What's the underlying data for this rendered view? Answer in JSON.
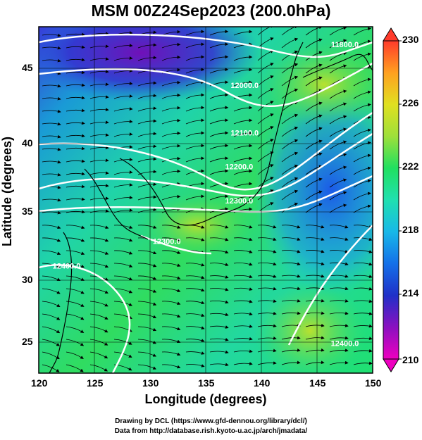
{
  "title": "MSM 00Z24Sep2023 (200.0hPa)",
  "xlabel": "Longitude (degrees)",
  "ylabel": "Latitude  (degrees)",
  "footer": {
    "line1": "Drawing by DCL (https://www.gfd-dennou.org/library/dcl/)",
    "line2": "Data from http://database.rish.kyoto-u.ac.jp/arch/jmadata/"
  },
  "x_ticks": [
    "120",
    "125",
    "130",
    "135",
    "140",
    "145",
    "150"
  ],
  "y_ticks": [
    "45",
    "40",
    "35",
    "30",
    "25"
  ],
  "colorbar": {
    "labels": [
      "230",
      "226",
      "222",
      "218",
      "214",
      "210"
    ],
    "min": 210,
    "max": 230,
    "colors": [
      "#ee00c0",
      "#8a10c0",
      "#2030c8",
      "#1470e8",
      "#18b8e8",
      "#20e0b0",
      "#20e060",
      "#9ee03a",
      "#e0e020",
      "#ffa020",
      "#ff3b2b"
    ]
  },
  "contour_labels": [
    "11800.0",
    "12000.0",
    "12100.0",
    "12200.0",
    "12300.0",
    "12400.0",
    "12400.0",
    "12300.0"
  ],
  "chart_data": {
    "type": "map",
    "map_type": "temperature field with geopotential height contours and streamlines",
    "xlim": [
      120,
      150
    ],
    "ylim": [
      22.5,
      48
    ],
    "contours": [
      {
        "label": "11800.0",
        "lon": 147.5,
        "lat": 46.5
      },
      {
        "label": "12000.0",
        "lon": 138.5,
        "lat": 43.5
      },
      {
        "label": "12100.0",
        "lon": 138.5,
        "lat": 40.0
      },
      {
        "label": "12200.0",
        "lon": 138.0,
        "lat": 37.5
      },
      {
        "label": "12300.0",
        "lon": 138.0,
        "lat": 35.0
      },
      {
        "label": "12400.0",
        "lon": 147.5,
        "lat": 24.5
      },
      {
        "label": "12400.0",
        "lon": 122.5,
        "lat": 30.2
      },
      {
        "label": "12300.0",
        "lon": 131.5,
        "lat": 32.0
      }
    ]
  }
}
